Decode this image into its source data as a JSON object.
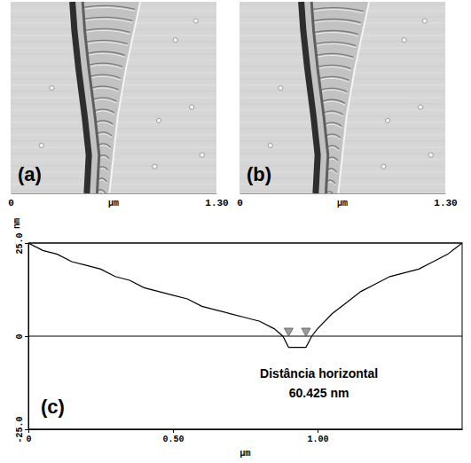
{
  "chart_data": [
    {
      "type": "image",
      "label": "(a)",
      "x_label": "µm",
      "xlim": [
        0,
        1.3
      ],
      "xticks": [
        0,
        {
          "value": 1.3,
          "label": "1.30"
        }
      ]
    },
    {
      "type": "image",
      "label": "(b)",
      "x_label": "µm",
      "xlim": [
        0,
        1.3
      ],
      "xticks": [
        0,
        {
          "value": 1.3,
          "label": "1.30"
        }
      ]
    },
    {
      "type": "line",
      "label": "(c)",
      "x_label": "µm",
      "y_label": "nm",
      "x": [
        0,
        0.05,
        0.1,
        0.15,
        0.2,
        0.25,
        0.3,
        0.35,
        0.4,
        0.45,
        0.5,
        0.55,
        0.6,
        0.65,
        0.7,
        0.75,
        0.8,
        0.85,
        0.88,
        0.9,
        0.93,
        0.96,
        0.98,
        1.0,
        1.05,
        1.1,
        1.15,
        1.2,
        1.25,
        1.3,
        1.35,
        1.4,
        1.45,
        1.5
      ],
      "values": [
        25,
        23,
        22,
        20,
        19,
        18,
        16,
        15,
        13,
        12,
        11,
        10,
        8,
        7,
        6,
        5,
        4,
        2,
        0,
        -3,
        -3,
        -3,
        0,
        2,
        6,
        9,
        12,
        14,
        16,
        17,
        18,
        20,
        22,
        25
      ],
      "color": "#000000",
      "xlim": [
        0,
        1.5
      ],
      "xticks": [
        0,
        {
          "value": 0.5,
          "label": "0.50"
        },
        {
          "value": 1,
          "label": "1.00"
        }
      ],
      "ylim": [
        -25,
        25
      ],
      "yticks": [
        {
          "value": -25,
          "label": "-25.0"
        },
        0,
        {
          "value": 25,
          "label": "25.0"
        }
      ],
      "grid": true,
      "cursors": [
        0.9,
        0.96
      ],
      "annotations": [
        "Distância horizontal",
        "60.425 nm"
      ]
    }
  ]
}
